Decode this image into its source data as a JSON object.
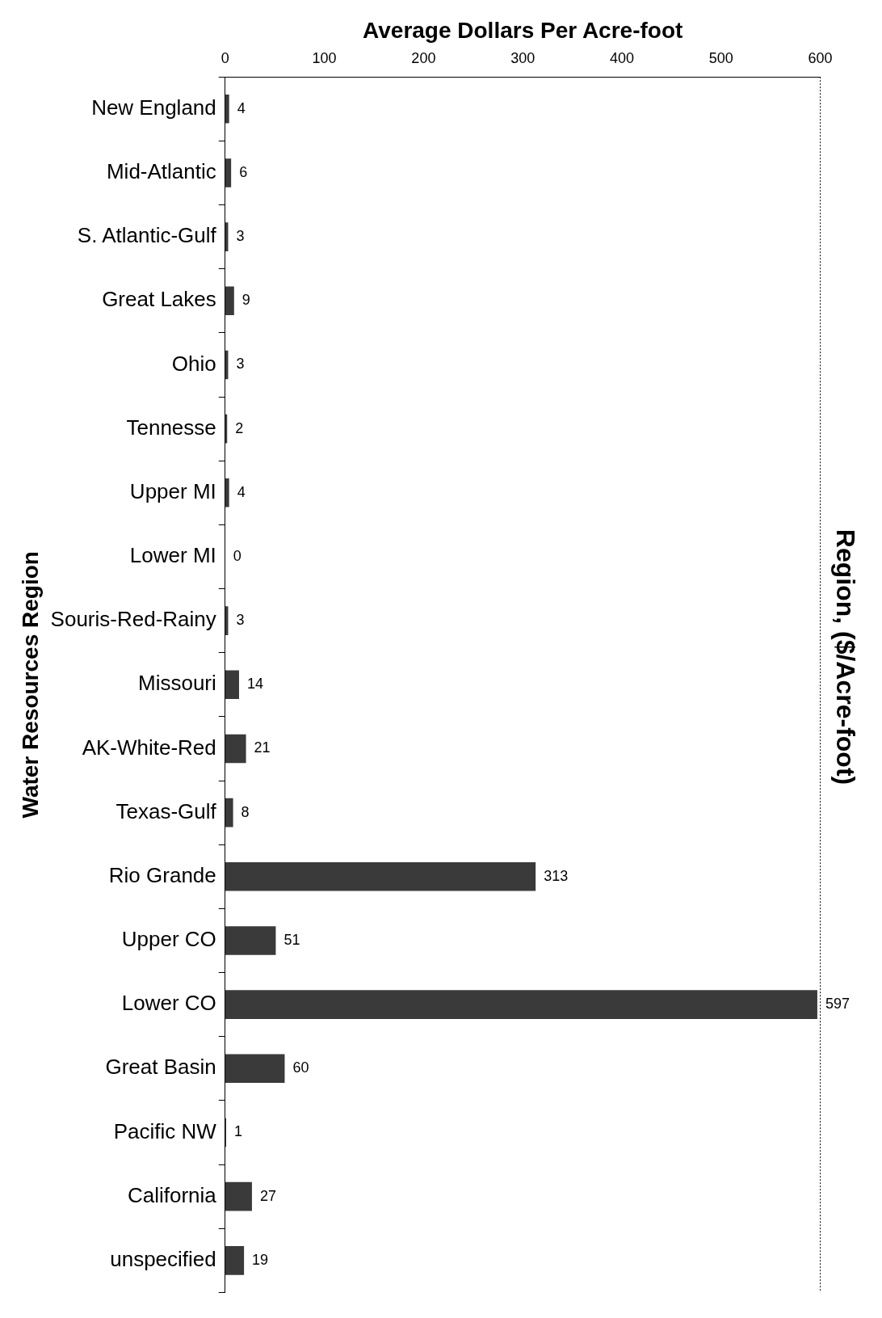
{
  "chart_data": {
    "type": "bar",
    "orientation": "horizontal",
    "title": "Region, ($/Acre-foot)",
    "xlabel": "Average Dollars Per Acre-foot",
    "ylabel": "Water Resources Region",
    "categories": [
      "New England",
      "Mid-Atlantic",
      "S. Atlantic-Gulf",
      "Great Lakes",
      "Ohio",
      "Tennesse",
      "Upper MI",
      "Lower MI",
      "Souris-Red-Rainy",
      "Missouri",
      "AK-White-Red",
      "Texas-Gulf",
      "Rio Grande",
      "Upper CO",
      "Lower CO",
      "Great Basin",
      "Pacific NW",
      "California",
      "unspecified"
    ],
    "values": [
      4,
      6,
      3,
      9,
      3,
      2,
      4,
      0,
      3,
      14,
      21,
      8,
      313,
      51,
      597,
      60,
      1,
      27,
      19
    ],
    "color": "#3a3a3a",
    "xlim": [
      0,
      600
    ],
    "xticks": [
      0,
      100,
      200,
      300,
      400,
      500,
      600
    ],
    "grid": false,
    "legend": false,
    "data_labels": true
  }
}
